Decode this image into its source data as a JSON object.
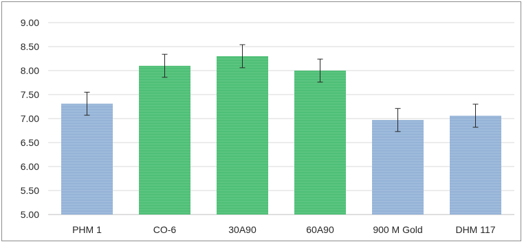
{
  "chart_data": {
    "type": "bar",
    "title": "",
    "xlabel": "",
    "ylabel": "",
    "categories": [
      "PHM 1",
      "CO-6",
      "30A90",
      "60A90",
      "900 M Gold",
      "DHM 117"
    ],
    "values": [
      7.31,
      8.1,
      8.3,
      8.0,
      6.97,
      7.06
    ],
    "error_low": [
      7.07,
      7.86,
      8.06,
      7.76,
      6.73,
      6.82
    ],
    "error_high": [
      7.55,
      8.34,
      8.54,
      8.24,
      7.21,
      7.3
    ],
    "ylim": [
      5.0,
      9.0
    ],
    "yticks": [
      "5.00",
      "5.50",
      "6.00",
      "6.50",
      "7.00",
      "7.50",
      "8.00",
      "8.50",
      "9.00"
    ],
    "grid": true,
    "legend": "none",
    "bar_colors": [
      "#95b3d7",
      "#4fbf77",
      "#4fbf77",
      "#4fbf77",
      "#95b3d7",
      "#95b3d7"
    ]
  }
}
